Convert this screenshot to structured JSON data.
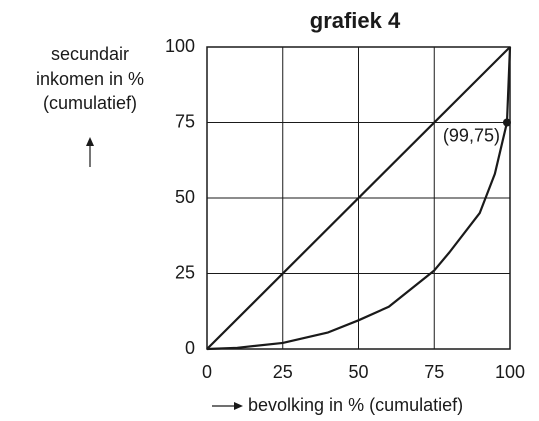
{
  "chart_data": {
    "type": "line",
    "title": "grafiek 4",
    "y_label": [
      "secundair",
      "inkomen in %",
      "(cumulatief)"
    ],
    "x_label": "bevolking in % (cumulatief)",
    "series": [
      {
        "color": "#1a1a1a",
        "x": [
          0,
          100
        ],
        "values": [
          0,
          100
        ]
      },
      {
        "color": "#1a1a1a",
        "x": [
          0,
          10,
          25,
          40,
          50,
          60,
          75,
          80,
          90,
          95,
          99,
          100
        ],
        "values": [
          0,
          0.4,
          2,
          5.5,
          9.5,
          14,
          26,
          32,
          45,
          58,
          75,
          100
        ]
      }
    ],
    "annotation": {
      "text": "(99,75)",
      "x": 99,
      "y": 75
    },
    "xlim": [
      0,
      100
    ],
    "ylim": [
      0,
      100
    ],
    "xticks": [
      0,
      25,
      50,
      75,
      100
    ],
    "yticks": [
      0,
      25,
      50,
      75,
      100
    ],
    "grid": true
  }
}
